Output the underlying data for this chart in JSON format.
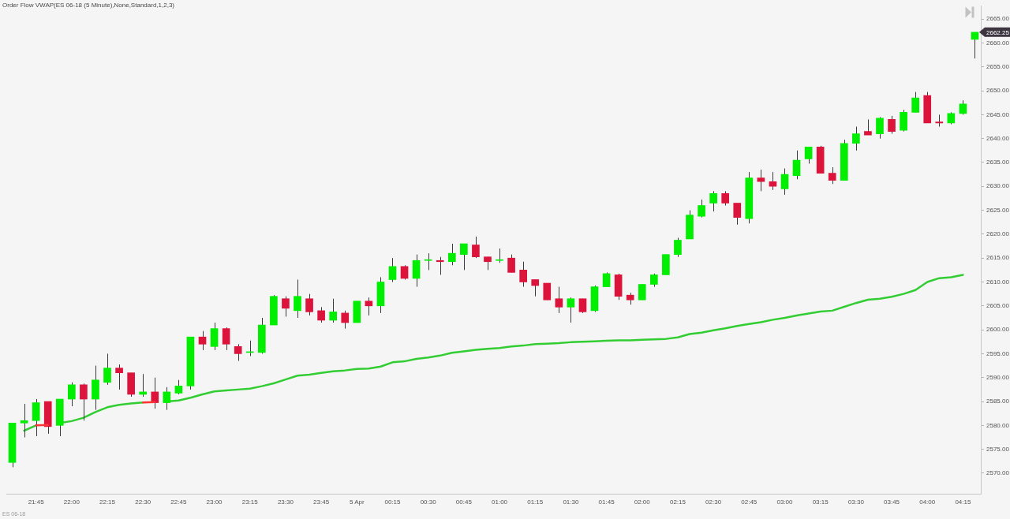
{
  "chart_data": {
    "type": "candlestick",
    "title": "Order Flow VWAP(ES 06-18 (5 Minute),None,Standard,1,2,3)",
    "categories": [
      null,
      null,
      "21:45",
      null,
      null,
      "22:00",
      null,
      null,
      "22:15",
      null,
      null,
      "22:30",
      null,
      null,
      "22:45",
      null,
      null,
      "23:00",
      null,
      null,
      "23:15",
      null,
      null,
      "23:30",
      null,
      null,
      "23:45",
      null,
      null,
      "5 Apr",
      null,
      null,
      "00:15",
      null,
      null,
      "00:30",
      null,
      null,
      "00:45",
      null,
      null,
      "01:00",
      null,
      null,
      "01:15",
      null,
      null,
      "01:30",
      null,
      null,
      "01:45",
      null,
      null,
      "02:00",
      null,
      null,
      "02:15",
      null,
      null,
      "02:30",
      null,
      null,
      "02:45",
      null,
      null,
      "03:00",
      null,
      null,
      "03:15",
      null,
      null,
      "03:30",
      null,
      null,
      "03:45",
      null,
      null,
      "04:00",
      null,
      null,
      "04:15",
      null
    ],
    "ohlc": [
      [
        2572.25,
        2580.5,
        2571.25,
        2580.5
      ],
      [
        2580.5,
        2584.5,
        2577.5,
        2581
      ],
      [
        2581,
        2585.5,
        2577.75,
        2584.75
      ],
      [
        2585,
        2585,
        2578.25,
        2579.75
      ],
      [
        2580,
        2585.5,
        2577.75,
        2585.5
      ],
      [
        2585.5,
        2589,
        2584,
        2588.5
      ],
      [
        2588.5,
        2588.75,
        2581,
        2585.5
      ],
      [
        2585.5,
        2592.5,
        2583.25,
        2589.5
      ],
      [
        2589,
        2595,
        2588.5,
        2592
      ],
      [
        2592,
        2592.75,
        2587.5,
        2591
      ],
      [
        2591,
        2591,
        2586,
        2586.5
      ],
      [
        2586.5,
        2590.75,
        2586,
        2587
      ],
      [
        2587,
        2590,
        2583.5,
        2584.75
      ],
      [
        2584.75,
        2588,
        2583.25,
        2587
      ],
      [
        2586.75,
        2589.5,
        2586.5,
        2588.25
      ],
      [
        2588.25,
        2598.5,
        2587.5,
        2598.5
      ],
      [
        2598.5,
        2599.75,
        2595.75,
        2597
      ],
      [
        2596.5,
        2601.5,
        2595.75,
        2600.25
      ],
      [
        2600.25,
        2600.5,
        2595.75,
        2597
      ],
      [
        2596.5,
        2597,
        2593.5,
        2595
      ],
      [
        2595.25,
        2597.75,
        2594.5,
        2595.25
      ],
      [
        2595.25,
        2602.5,
        2595,
        2601
      ],
      [
        2601,
        2607.25,
        2601,
        2607
      ],
      [
        2606.5,
        2607,
        2602.75,
        2604.5
      ],
      [
        2604,
        2610.5,
        2602.5,
        2607
      ],
      [
        2606.5,
        2607.5,
        2603,
        2603.75
      ],
      [
        2604,
        2604.75,
        2601.5,
        2602
      ],
      [
        2602,
        2606.5,
        2601.5,
        2603.75
      ],
      [
        2603.5,
        2604,
        2600.25,
        2601.5
      ],
      [
        2601.5,
        2606,
        2601.5,
        2606
      ],
      [
        2606,
        2606.75,
        2603,
        2605
      ],
      [
        2605,
        2611,
        2603.5,
        2610
      ],
      [
        2610.5,
        2615,
        2610,
        2613.25
      ],
      [
        2613.25,
        2613.5,
        2610.5,
        2610.75
      ],
      [
        2610.75,
        2615.75,
        2609,
        2614.5
      ],
      [
        2614.5,
        2616,
        2612.5,
        2614.5
      ],
      [
        2614.5,
        2615.25,
        2611.5,
        2614.25
      ],
      [
        2614.25,
        2618,
        2613.5,
        2616
      ],
      [
        2615.75,
        2618,
        2612.5,
        2618
      ],
      [
        2617.75,
        2619.5,
        2615,
        2615.25
      ],
      [
        2615.25,
        2615.25,
        2612.5,
        2614.25
      ],
      [
        2614.5,
        2617,
        2614,
        2614.5
      ],
      [
        2615,
        2615.75,
        2612,
        2612
      ],
      [
        2612.5,
        2614.25,
        2609,
        2610
      ],
      [
        2610.5,
        2610.5,
        2607,
        2609.25
      ],
      [
        2609.75,
        2609.75,
        2606.25,
        2606.25
      ],
      [
        2606.5,
        2609,
        2603.5,
        2604.75
      ],
      [
        2604.75,
        2606.75,
        2601.5,
        2606.5
      ],
      [
        2606.5,
        2606.5,
        2603.5,
        2603.75
      ],
      [
        2604,
        2609.25,
        2603.75,
        2609
      ],
      [
        2609,
        2612,
        2609,
        2611.75
      ],
      [
        2611.5,
        2611.75,
        2606.25,
        2607
      ],
      [
        2607.25,
        2607.75,
        2605.25,
        2606.25
      ],
      [
        2606.25,
        2609.5,
        2606.25,
        2609.5
      ],
      [
        2609.5,
        2611.75,
        2609,
        2611.5
      ],
      [
        2611.5,
        2615.75,
        2611.5,
        2615.75
      ],
      [
        2615.75,
        2619.25,
        2615.25,
        2618.75
      ],
      [
        2619,
        2625,
        2619,
        2624
      ],
      [
        2623.75,
        2627.25,
        2623.5,
        2626
      ],
      [
        2626.5,
        2629,
        2624.75,
        2628.5
      ],
      [
        2628.5,
        2629,
        2626,
        2626.5
      ],
      [
        2626.5,
        2626.5,
        2622,
        2623.5
      ],
      [
        2623.25,
        2633,
        2622.25,
        2631.75
      ],
      [
        2631.75,
        2633.5,
        2629,
        2631
      ],
      [
        2631,
        2633,
        2629.25,
        2630
      ],
      [
        2629.5,
        2633.75,
        2628.25,
        2632.5
      ],
      [
        2632.25,
        2637.5,
        2631.5,
        2635.5
      ],
      [
        2635.75,
        2638.25,
        2634.75,
        2638.25
      ],
      [
        2638.25,
        2638.5,
        2632.75,
        2632.75
      ],
      [
        2632.75,
        2634,
        2630.5,
        2631.25
      ],
      [
        2631.25,
        2639.75,
        2631.25,
        2639
      ],
      [
        2639,
        2642.5,
        2637.5,
        2641
      ],
      [
        2641.5,
        2644,
        2640.75,
        2640.75
      ],
      [
        2641,
        2644.5,
        2640,
        2644.25
      ],
      [
        2644,
        2644.75,
        2641,
        2641.5
      ],
      [
        2641.75,
        2646,
        2641.5,
        2645.5
      ],
      [
        2645.5,
        2649.75,
        2645.5,
        2648.5
      ],
      [
        2649,
        2649.75,
        2643.25,
        2643.25
      ],
      [
        2643.5,
        2645,
        2642.5,
        2643.25
      ],
      [
        2643.25,
        2645.5,
        2643,
        2645.25
      ],
      [
        2645.25,
        2648,
        2645,
        2647.25
      ],
      [
        2660.75,
        2662.25,
        2656.75,
        2662.25
      ]
    ],
    "colors": [
      "#00ee00",
      "#00ee00",
      "#00ee00",
      "#dc143c",
      "#00ee00",
      "#00ee00",
      "#dc143c",
      "#00ee00",
      "#00ee00",
      "#dc143c",
      "#dc143c",
      "#00ee00",
      "#dc143c",
      "#00ee00",
      "#00ee00",
      "#00ee00",
      "#dc143c",
      "#00ee00",
      "#dc143c",
      "#dc143c",
      "#00ee00",
      "#00ee00",
      "#00ee00",
      "#dc143c",
      "#00ee00",
      "#dc143c",
      "#dc143c",
      "#00ee00",
      "#dc143c",
      "#00ee00",
      "#dc143c",
      "#00ee00",
      "#00ee00",
      "#dc143c",
      "#00ee00",
      "#00ee00",
      "#dc143c",
      "#00ee00",
      "#00ee00",
      "#dc143c",
      "#dc143c",
      "#00ee00",
      "#dc143c",
      "#dc143c",
      "#dc143c",
      "#dc143c",
      "#dc143c",
      "#00ee00",
      "#dc143c",
      "#00ee00",
      "#00ee00",
      "#dc143c",
      "#dc143c",
      "#00ee00",
      "#00ee00",
      "#00ee00",
      "#00ee00",
      "#00ee00",
      "#00ee00",
      "#00ee00",
      "#dc143c",
      "#dc143c",
      "#00ee00",
      "#dc143c",
      "#dc143c",
      "#00ee00",
      "#00ee00",
      "#00ee00",
      "#dc143c",
      "#dc143c",
      "#00ee00",
      "#00ee00",
      "#dc143c",
      "#00ee00",
      "#dc143c",
      "#00ee00",
      "#00ee00",
      "#dc143c",
      "#dc143c",
      "#00ee00",
      "#00ee00",
      "#00ee00"
    ],
    "series": [
      {
        "type": "line",
        "color": "#32cd32",
        "values": [
          null,
          2578.9,
          2580.0,
          null,
          2580.5,
          2580.9,
          2581.6,
          2582.8,
          2583.8,
          2584.3,
          2584.6,
          2584.8,
          null,
          2585.0,
          2585.2,
          2585.8,
          2586.5,
          2587.1,
          2587.3,
          2587.5,
          2587.7,
          2588.2,
          2588.8,
          2589.6,
          2590.4,
          2590.6,
          2591.0,
          2591.3,
          2591.5,
          2591.8,
          2591.9,
          2592.3,
          2593.2,
          2593.4,
          2593.9,
          2594.2,
          2594.6,
          2595.2,
          2595.5,
          2595.8,
          2596.0,
          2596.2,
          2596.5,
          2596.7,
          2597.0,
          2597.1,
          2597.2,
          2597.4,
          2597.5,
          2597.6,
          2597.7,
          2597.8,
          2597.8,
          2597.9,
          2598.0,
          2598.1,
          2598.4,
          2599.1,
          2599.4,
          2599.9,
          2600.3,
          2600.8,
          2601.2,
          2601.6,
          2602.1,
          2602.5,
          2603.0,
          2603.4,
          2603.8,
          2604.0,
          2604.8,
          2605.6,
          2606.3,
          2606.5,
          2606.9,
          2607.5,
          2608.3,
          2610.0,
          2610.8,
          2611.0,
          2611.5,
          null
        ]
      },
      {
        "type": "line",
        "color": "#ff3333",
        "values": [
          null,
          null,
          2580.0,
          2580.1,
          null,
          null,
          null,
          null,
          null,
          null,
          null,
          2584.8,
          2584.9,
          null,
          null,
          null,
          null,
          null,
          null,
          null,
          null,
          null,
          null,
          null,
          null,
          null,
          null,
          null,
          null,
          null,
          null,
          null,
          null,
          null,
          null,
          null,
          null,
          null,
          null,
          null,
          null,
          null,
          null,
          null,
          null,
          null,
          null,
          null,
          null,
          null,
          null,
          null,
          null,
          null,
          null,
          null,
          null,
          null,
          null,
          null,
          null,
          null,
          null,
          null,
          null,
          null,
          null,
          null,
          null,
          null,
          null,
          null,
          null,
          null,
          null,
          null,
          null,
          null,
          null,
          null,
          null,
          null
        ]
      }
    ],
    "ylim": [
      2565.7,
      2667.7
    ],
    "yticks": [
      {
        "value": 2570,
        "label": "2570.00"
      },
      {
        "value": 2575,
        "label": "2575.00"
      },
      {
        "value": 2580,
        "label": "2580.00"
      },
      {
        "value": 2585,
        "label": "2585.00"
      },
      {
        "value": 2590,
        "label": "2590.00"
      },
      {
        "value": 2595,
        "label": "2595.00"
      },
      {
        "value": 2600,
        "label": "2600.00"
      },
      {
        "value": 2605,
        "label": "2605.00"
      },
      {
        "value": 2610,
        "label": "2610.00"
      },
      {
        "value": 2615,
        "label": "2615.00"
      },
      {
        "value": 2620,
        "label": "2620.00"
      },
      {
        "value": 2625,
        "label": "2625.00"
      },
      {
        "value": 2630,
        "label": "2630.00"
      },
      {
        "value": 2635,
        "label": "2635.00"
      },
      {
        "value": 2640,
        "label": "2640.00"
      },
      {
        "value": 2645,
        "label": "2645.00"
      },
      {
        "value": 2650,
        "label": "2650.00"
      },
      {
        "value": 2655,
        "label": "2655.00"
      },
      {
        "value": 2660,
        "label": "2660.00"
      },
      {
        "value": 2665,
        "label": "2665.00"
      }
    ],
    "annotations": [
      "ES 06-18",
      "2662.25"
    ]
  }
}
